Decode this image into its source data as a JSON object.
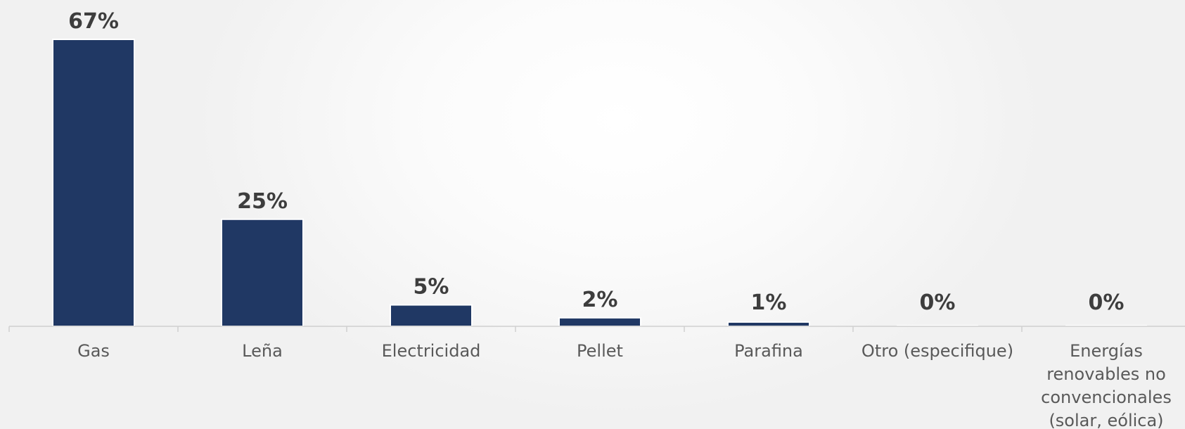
{
  "chart_data": {
    "type": "bar",
    "categories": [
      [
        "Gas"
      ],
      [
        "Leña"
      ],
      [
        "Electricidad"
      ],
      [
        "Pellet"
      ],
      [
        "Parafina"
      ],
      [
        "Otro (especifique)"
      ],
      [
        "Energías",
        "renovables no",
        "convencionales",
        "(solar, eólica)"
      ]
    ],
    "values": [
      67,
      25,
      5,
      2,
      1,
      0,
      0
    ],
    "data_labels": [
      "67%",
      "25%",
      "5%",
      "2%",
      "1%",
      "0%",
      "0%"
    ],
    "ylim": [
      0,
      67
    ],
    "grid": false,
    "legend": "none",
    "colors": {
      "bar": "#203864",
      "axis": "#d0d0d0",
      "value_text": "#3d3d3d",
      "category_text": "#595959"
    }
  }
}
